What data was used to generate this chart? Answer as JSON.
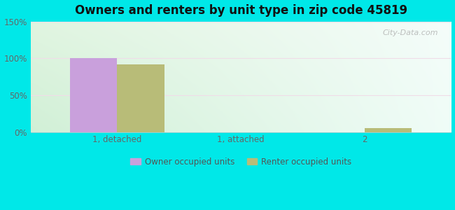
{
  "title": "Owners and renters by unit type in zip code 45819",
  "categories": [
    "1, detached",
    "1, attached",
    "2"
  ],
  "owner_values": [
    100,
    0,
    0
  ],
  "renter_values": [
    92,
    0,
    5
  ],
  "owner_color": "#c9a0dc",
  "renter_color": "#b8bc78",
  "ylim": [
    0,
    150
  ],
  "yticks": [
    0,
    50,
    100,
    150
  ],
  "ytick_labels": [
    "0%",
    "50%",
    "100%",
    "150%"
  ],
  "bar_width": 0.38,
  "outer_color": "#00e8e8",
  "legend_labels": [
    "Owner occupied units",
    "Renter occupied units"
  ],
  "watermark": "City-Data.com",
  "grad_topleft": [
    0.88,
    0.96,
    0.88
  ],
  "grad_topright": [
    0.96,
    0.99,
    0.98
  ],
  "grad_bottomleft": [
    0.82,
    0.94,
    0.84
  ],
  "grad_bottomright": [
    0.94,
    0.99,
    0.97
  ],
  "grid_color": "#e8e8e8",
  "tick_color": "#666666",
  "title_fontsize": 12
}
